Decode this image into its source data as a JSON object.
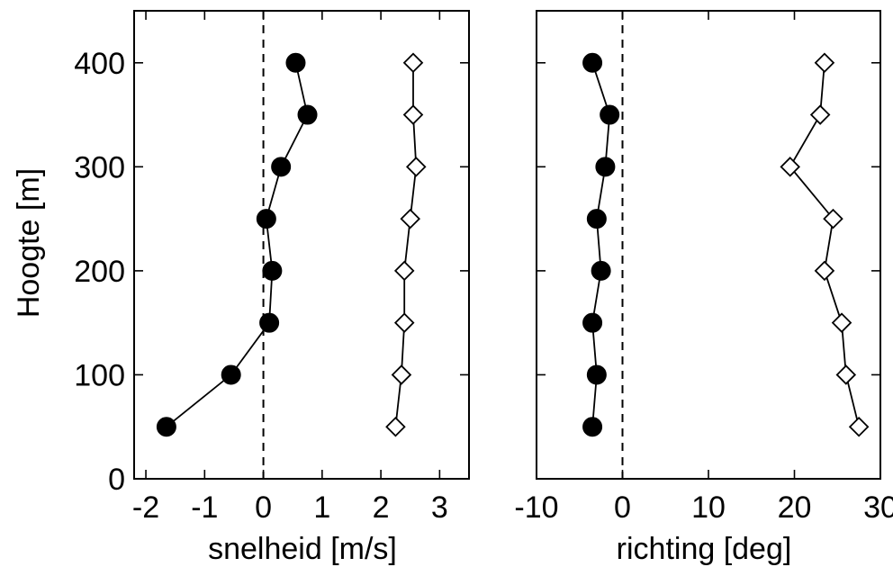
{
  "chart_data": [
    {
      "type": "scatter",
      "title": "",
      "xlabel": "snelheid [m/s]",
      "ylabel": "Hoogte [m]",
      "xlim": [
        -2.2,
        3.5
      ],
      "ylim": [
        0,
        450
      ],
      "xticks": [
        -2,
        -1,
        0,
        1,
        2,
        3
      ],
      "yticks": [
        0,
        100,
        200,
        300,
        400
      ],
      "zero_line": "dashed vertical at x=0",
      "series": [
        {
          "marker": "filled-circle",
          "x": [
            -1.65,
            -0.55,
            0.1,
            0.15,
            0.05,
            0.3,
            0.75,
            0.55
          ],
          "y": [
            50,
            100,
            150,
            200,
            250,
            300,
            350,
            400
          ]
        },
        {
          "marker": "open-diamond",
          "x": [
            2.25,
            2.35,
            2.4,
            2.4,
            2.5,
            2.6,
            2.55,
            2.55
          ],
          "y": [
            50,
            100,
            150,
            200,
            250,
            300,
            350,
            400
          ]
        }
      ]
    },
    {
      "type": "scatter",
      "title": "",
      "xlabel": "richting [deg]",
      "ylabel": "",
      "xlim": [
        -10,
        30
      ],
      "ylim": [
        0,
        450
      ],
      "xticks": [
        -10,
        0,
        10,
        20,
        30
      ],
      "yticks": [
        0,
        100,
        200,
        300,
        400
      ],
      "zero_line": "dashed vertical at x=0",
      "series": [
        {
          "marker": "filled-circle",
          "x": [
            -3.5,
            -3.0,
            -3.5,
            -2.5,
            -3.0,
            -2.0,
            -1.5,
            -3.5
          ],
          "y": [
            50,
            100,
            150,
            200,
            250,
            300,
            350,
            400
          ]
        },
        {
          "marker": "open-diamond",
          "x": [
            27.5,
            26.0,
            25.5,
            23.5,
            24.5,
            19.5,
            23.0,
            23.5
          ],
          "y": [
            50,
            100,
            150,
            200,
            250,
            300,
            350,
            400
          ]
        }
      ]
    }
  ]
}
